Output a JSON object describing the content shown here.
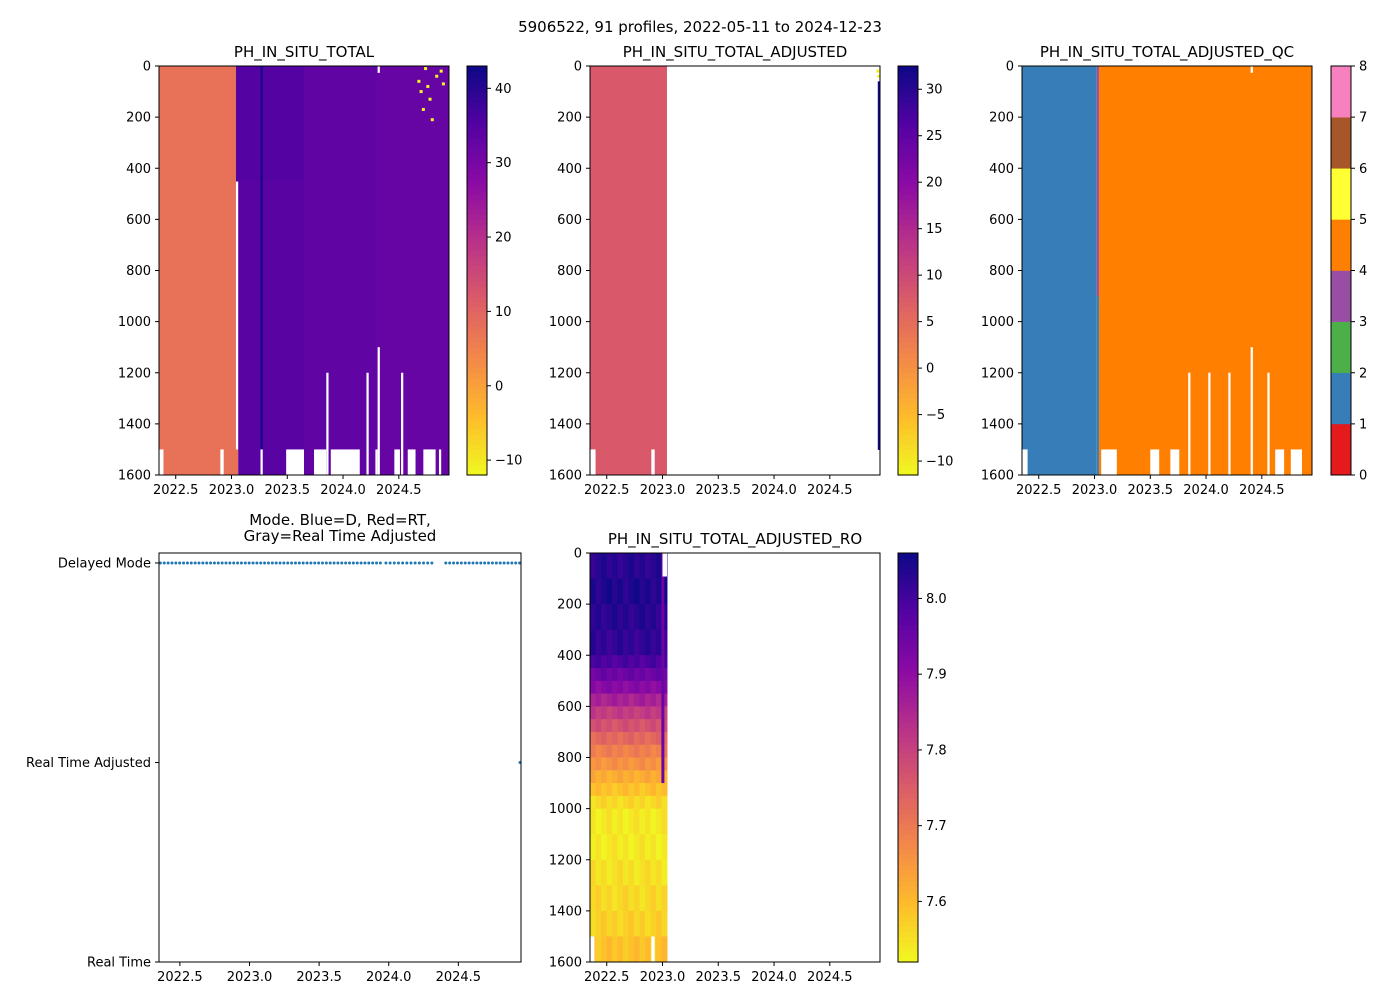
{
  "figure": {
    "suptitle": "5906522, 91 profiles, 2022-05-11 to 2024-12-23"
  },
  "chart_data": [
    {
      "type": "heatmap",
      "title": "PH_IN_SITU_TOTAL",
      "xlim": [
        2022.35,
        2024.95
      ],
      "ylim": [
        1600,
        0
      ],
      "xticks": [
        2022.5,
        2023.0,
        2023.5,
        2024.0,
        2024.5
      ],
      "xtick_labels": [
        "2022.5",
        "2023.0",
        "2023.5",
        "2024.0",
        "2024.5"
      ],
      "yticks": [
        0,
        200,
        400,
        600,
        800,
        1000,
        1200,
        1400,
        1600
      ],
      "ytick_labels": [
        "0",
        "200",
        "400",
        "600",
        "800",
        "1000",
        "1200",
        "1400",
        "1600"
      ],
      "colormap": "plasma_r",
      "colorbar": {
        "min": -12,
        "max": 43,
        "ticks": [
          -10,
          0,
          10,
          20,
          30,
          40
        ],
        "tick_labels": [
          "−10",
          "0",
          "10",
          "20",
          "30",
          "40"
        ]
      },
      "regions": [
        {
          "x0": 2022.35,
          "x1": 2023.04,
          "y0": 0,
          "y1": 1500,
          "value": 7.6
        },
        {
          "x0": 2022.35,
          "x1": 2023.06,
          "y0": 1500,
          "y1": 1600,
          "value": 7.6
        },
        {
          "x0": 2023.04,
          "x1": 2023.65,
          "y0": 0,
          "y1": 450,
          "value": 35
        },
        {
          "x0": 2023.06,
          "x1": 2023.65,
          "y0": 450,
          "y1": 1600,
          "value": 34.5
        },
        {
          "x0": 2023.65,
          "x1": 2024.3,
          "y0": 0,
          "y1": 1600,
          "value": 33.5
        },
        {
          "x0": 2024.3,
          "x1": 2024.95,
          "y0": 0,
          "y1": 1600,
          "value": 32.5
        },
        {
          "x0": 2023.26,
          "x1": 2023.28,
          "y0": 0,
          "y1": 1500,
          "value": 42
        }
      ],
      "gaps": [
        {
          "x0": 2022.35,
          "x1": 2022.39,
          "y0": 1500,
          "y1": 1600
        },
        {
          "x0": 2022.9,
          "x1": 2022.93,
          "y0": 1500,
          "y1": 1600
        },
        {
          "x0": 2023.26,
          "x1": 2023.28,
          "y0": 1500,
          "y1": 1600
        },
        {
          "x0": 2023.49,
          "x1": 2023.65,
          "y0": 1500,
          "y1": 1600
        },
        {
          "x0": 2023.74,
          "x1": 2023.85,
          "y0": 1500,
          "y1": 1600
        },
        {
          "x0": 2023.89,
          "x1": 2024.15,
          "y0": 1500,
          "y1": 1600
        },
        {
          "x0": 2023.85,
          "x1": 2023.87,
          "y0": 1200,
          "y1": 1600
        },
        {
          "x0": 2024.21,
          "x1": 2024.23,
          "y0": 1200,
          "y1": 1600
        },
        {
          "x0": 2024.31,
          "x1": 2024.33,
          "y0": 1100,
          "y1": 1600
        },
        {
          "x0": 2024.41,
          "x1": 2024.44,
          "y0": 1600,
          "y1": 1600
        },
        {
          "x0": 2024.29,
          "x1": 2024.31,
          "y0": 1500,
          "y1": 1600
        },
        {
          "x0": 2024.52,
          "x1": 2024.54,
          "y0": 1200,
          "y1": 1600
        },
        {
          "x0": 2024.46,
          "x1": 2024.51,
          "y0": 1500,
          "y1": 1600
        },
        {
          "x0": 2024.58,
          "x1": 2024.65,
          "y0": 1500,
          "y1": 1600
        },
        {
          "x0": 2024.72,
          "x1": 2024.83,
          "y0": 1500,
          "y1": 1600
        },
        {
          "x0": 2024.86,
          "x1": 2024.88,
          "y0": 1500,
          "y1": 1600
        },
        {
          "x0": 2024.31,
          "x1": 2024.33,
          "y0": 0,
          "y1": 25
        }
      ],
      "outliers": [
        {
          "x": 2024.68,
          "y": 60,
          "value": -12
        },
        {
          "x": 2024.7,
          "y": 100,
          "value": -12
        },
        {
          "x": 2024.78,
          "y": 130,
          "value": -12
        },
        {
          "x": 2024.8,
          "y": 210,
          "value": -12
        },
        {
          "x": 2024.72,
          "y": 170,
          "value": -12
        },
        {
          "x": 2024.84,
          "y": 40,
          "value": -12
        },
        {
          "x": 2024.88,
          "y": 20,
          "value": -12
        },
        {
          "x": 2024.76,
          "y": 80,
          "value": -12
        },
        {
          "x": 2024.9,
          "y": 70,
          "value": -12
        },
        {
          "x": 2024.74,
          "y": 10,
          "value": -12
        }
      ]
    },
    {
      "type": "heatmap",
      "title": "PH_IN_SITU_TOTAL_ADJUSTED",
      "xlim": [
        2022.35,
        2024.95
      ],
      "ylim": [
        1600,
        0
      ],
      "xticks": [
        2022.5,
        2023.0,
        2023.5,
        2024.0,
        2024.5
      ],
      "xtick_labels": [
        "2022.5",
        "2023.0",
        "2023.5",
        "2024.0",
        "2024.5"
      ],
      "yticks": [
        0,
        200,
        400,
        600,
        800,
        1000,
        1200,
        1400,
        1600
      ],
      "ytick_labels": [
        "0",
        "200",
        "400",
        "600",
        "800",
        "1000",
        "1200",
        "1400",
        "1600"
      ],
      "colormap": "plasma_r",
      "colorbar": {
        "min": -11.5,
        "max": 32.5,
        "ticks": [
          -10,
          -5,
          0,
          5,
          10,
          15,
          20,
          25,
          30
        ],
        "tick_labels": [
          "−10",
          "−5",
          "0",
          "5",
          "10",
          "15",
          "20",
          "25",
          "30"
        ]
      },
      "regions": [
        {
          "x0": 2022.35,
          "x1": 2023.04,
          "y0": 0,
          "y1": 1500,
          "value": 7.8
        },
        {
          "x0": 2022.35,
          "x1": 2023.04,
          "y0": 1500,
          "y1": 1600,
          "value": 7.8
        },
        {
          "x0": 2024.93,
          "x1": 2024.95,
          "y0": 60,
          "y1": 1500,
          "value": 32
        }
      ],
      "gaps": [
        {
          "x0": 2022.35,
          "x1": 2022.4,
          "y0": 1500,
          "y1": 1600
        },
        {
          "x0": 2022.9,
          "x1": 2022.93,
          "y0": 1500,
          "y1": 1600
        }
      ],
      "outliers": [
        {
          "x": 2024.93,
          "y": 20,
          "value": -11
        },
        {
          "x": 2024.94,
          "y": 40,
          "value": -11
        }
      ]
    },
    {
      "type": "heatmap",
      "title": "PH_IN_SITU_TOTAL_ADJUSTED_QC",
      "xlim": [
        2022.35,
        2024.95
      ],
      "ylim": [
        1600,
        0
      ],
      "xticks": [
        2022.5,
        2023.0,
        2023.5,
        2024.0,
        2024.5
      ],
      "xtick_labels": [
        "2022.5",
        "2023.0",
        "2023.5",
        "2024.0",
        "2024.5"
      ],
      "yticks": [
        0,
        200,
        400,
        600,
        800,
        1000,
        1200,
        1400,
        1600
      ],
      "ytick_labels": [
        "0",
        "200",
        "400",
        "600",
        "800",
        "1000",
        "1200",
        "1400",
        "1600"
      ],
      "colormap": "qc",
      "colorbar": {
        "min": 0,
        "max": 8,
        "ticks": [
          0,
          1,
          2,
          3,
          4,
          5,
          6,
          7,
          8
        ],
        "tick_labels": [
          "0",
          "1",
          "2",
          "3",
          "4",
          "5",
          "6",
          "7",
          "8"
        ]
      },
      "qc_colors": [
        "#e41a1c",
        "#377eb8",
        "#4daf4a",
        "#984ea3",
        "#ff7f00",
        "#ffff33",
        "#a65628",
        "#f781bf",
        "#999999"
      ],
      "regions": [
        {
          "x0": 2022.35,
          "x1": 2023.02,
          "y0": 0,
          "y1": 1600,
          "value": 1
        },
        {
          "x0": 2023.02,
          "x1": 2023.04,
          "y0": 0,
          "y1": 900,
          "value": 3
        },
        {
          "x0": 2023.02,
          "x1": 2023.04,
          "y0": 900,
          "y1": 1600,
          "value": 1
        },
        {
          "x0": 2023.04,
          "x1": 2024.95,
          "y0": 0,
          "y1": 1600,
          "value": 4
        }
      ],
      "gaps": [
        {
          "x0": 2022.35,
          "x1": 2022.4,
          "y0": 1500,
          "y1": 1600
        },
        {
          "x0": 2023.06,
          "x1": 2023.2,
          "y0": 1500,
          "y1": 1600
        },
        {
          "x0": 2023.5,
          "x1": 2023.58,
          "y0": 1500,
          "y1": 1600
        },
        {
          "x0": 2023.68,
          "x1": 2023.76,
          "y0": 1500,
          "y1": 1600
        },
        {
          "x0": 2023.84,
          "x1": 2023.86,
          "y0": 1200,
          "y1": 1600
        },
        {
          "x0": 2024.02,
          "x1": 2024.04,
          "y0": 1200,
          "y1": 1600
        },
        {
          "x0": 2024.2,
          "x1": 2024.22,
          "y0": 1200,
          "y1": 1600
        },
        {
          "x0": 2024.4,
          "x1": 2024.42,
          "y0": 1100,
          "y1": 1600
        },
        {
          "x0": 2024.55,
          "x1": 2024.57,
          "y0": 1200,
          "y1": 1600
        },
        {
          "x0": 2024.62,
          "x1": 2024.7,
          "y0": 1500,
          "y1": 1600
        },
        {
          "x0": 2024.76,
          "x1": 2024.86,
          "y0": 1500,
          "y1": 1600
        },
        {
          "x0": 2024.4,
          "x1": 2024.42,
          "y0": 0,
          "y1": 25
        }
      ],
      "outliers": []
    },
    {
      "type": "scatter",
      "title": "Mode. Blue=D, Red=RT,\nGray=Real Time Adjusted",
      "title_lines": [
        "Mode. Blue=D, Red=RT,",
        "Gray=Real Time Adjusted"
      ],
      "xlim": [
        2022.35,
        2024.95
      ],
      "xticks": [
        2022.5,
        2023.0,
        2023.5,
        2024.0,
        2024.5
      ],
      "xtick_labels": [
        "2022.5",
        "2023.0",
        "2023.5",
        "2024.0",
        "2024.5"
      ],
      "yticks": [
        0,
        1,
        2
      ],
      "ytick_labels": [
        "Real Time",
        "Real Time Adjusted",
        "Delayed Mode"
      ],
      "ylim": [
        0,
        2.05
      ],
      "marker_color": "#1f77b4",
      "series": [
        {
          "name": "Delayed Mode",
          "y": 2,
          "x_ranges": [
            [
              2022.36,
              2023.94
            ],
            [
              2023.98,
              2024.31
            ],
            [
              2024.41,
              2024.94
            ]
          ],
          "count": 90
        },
        {
          "name": "Real Time Adjusted",
          "y": 1,
          "x_points": [
            2024.95
          ]
        }
      ]
    },
    {
      "type": "heatmap",
      "title": "PH_IN_SITU_TOTAL_ADJUSTED_RO",
      "xlim": [
        2022.35,
        2024.95
      ],
      "ylim": [
        1600,
        0
      ],
      "xticks": [
        2022.5,
        2023.0,
        2023.5,
        2024.0,
        2024.5
      ],
      "xtick_labels": [
        "2022.5",
        "2023.0",
        "2023.5",
        "2024.0",
        "2024.5"
      ],
      "yticks": [
        0,
        200,
        400,
        600,
        800,
        1000,
        1200,
        1400,
        1600
      ],
      "ytick_labels": [
        "0",
        "200",
        "400",
        "600",
        "800",
        "1000",
        "1200",
        "1400",
        "1600"
      ],
      "colormap": "plasma_r",
      "colorbar": {
        "min": 7.52,
        "max": 8.06,
        "ticks": [
          7.6,
          7.7,
          7.8,
          7.9,
          8.0
        ],
        "tick_labels": [
          "7.6",
          "7.7",
          "7.8",
          "7.9",
          "8.0"
        ]
      },
      "profile": {
        "x0": 2022.35,
        "x1": 2023.04,
        "columns": 14,
        "depths": [
          0,
          100,
          200,
          300,
          400,
          450,
          500,
          550,
          600,
          650,
          700,
          750,
          800,
          850,
          900,
          950,
          1000,
          1100,
          1200,
          1300,
          1400,
          1500,
          1600
        ],
        "values": [
          8.03,
          8.04,
          8.03,
          8.02,
          7.99,
          7.95,
          7.91,
          7.86,
          7.81,
          7.77,
          7.73,
          7.69,
          7.66,
          7.62,
          7.59,
          7.56,
          7.54,
          7.54,
          7.55,
          7.56,
          7.57,
          7.59,
          7.6
        ]
      },
      "gaps": [
        {
          "x0": 2022.35,
          "x1": 2022.39,
          "y0": 1500,
          "y1": 1600
        },
        {
          "x0": 2022.9,
          "x1": 2022.93,
          "y0": 1500,
          "y1": 1600
        },
        {
          "x0": 2023.0,
          "x1": 2023.04,
          "y0": 0,
          "y1": 90
        }
      ]
    }
  ]
}
